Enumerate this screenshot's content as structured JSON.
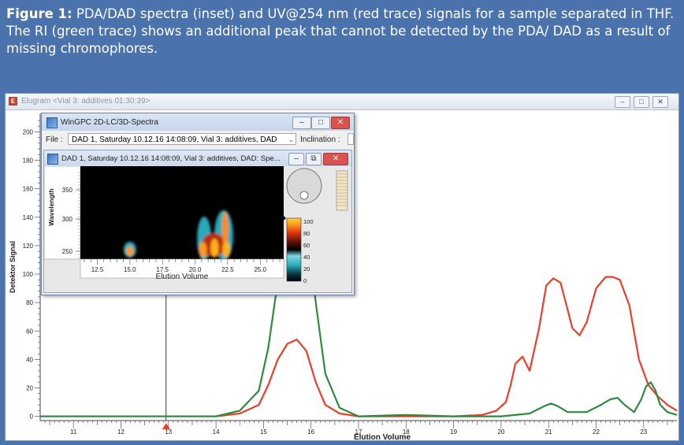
{
  "caption": {
    "figure_label": "Figure 1:",
    "text": "PDA/DAD spectra (inset) and UV@254 nm (red trace) signals for a sample separated in THF. The RI (green trace) shows an additional peak that cannot be detected by the PDA/ DAD as a result of missing chromophores."
  },
  "main_window": {
    "title": "Elugram <Vial 3: additives 01:30:39>",
    "icon": "app-icon",
    "controls": [
      "minimize",
      "maximize",
      "close"
    ]
  },
  "inset_window": {
    "title": "WinGPC 2D-LC/3D-Spectra",
    "file_label": "File :",
    "file_value": "DAD 1, Saturday    10.12.16   14:08:09, Vial   3: additives, DAD",
    "inclination_label": "Inclination :",
    "sub_title": "DAD 1, Saturday    10.12.16   14:08:09, Vial   3: additives, DAD: Spe...",
    "heatmap": {
      "ylabel": "Wavelength",
      "yticks": [
        "350",
        "300",
        "250"
      ],
      "xlabel": "Elution Volume",
      "xticks": [
        "12.5",
        "15.0",
        "17.5",
        "20.0",
        "22.5",
        "25.0"
      ],
      "colorbar_ticks": [
        "100",
        "80",
        "60",
        "40",
        "20",
        "0"
      ]
    }
  },
  "chart_data": {
    "type": "line",
    "xlabel": "Elution Volume",
    "ylabel": "Detektor Signal",
    "xlim": [
      10.3,
      23.7
    ],
    "ylim": [
      -3,
      213
    ],
    "xticks": [
      11,
      12,
      13,
      14,
      15,
      16,
      17,
      18,
      19,
      20,
      21,
      22,
      23
    ],
    "yticks": [
      0,
      20,
      40,
      60,
      80,
      100,
      120,
      140,
      160,
      180,
      200
    ],
    "cursor_x": 12.95,
    "colors": {
      "uv": "#e8402a",
      "ri": "#2e8b3e",
      "cursor": "#000000"
    },
    "series": [
      {
        "x": [
          14.0,
          14.5,
          14.9,
          15.1,
          15.3,
          15.5,
          15.7,
          15.9,
          16.1,
          16.3,
          16.6,
          17.0,
          18.0,
          19.0,
          19.6,
          19.9,
          20.1,
          20.2,
          20.3,
          20.45,
          20.6,
          20.8,
          20.95,
          21.1,
          21.25,
          21.4,
          21.5,
          21.65,
          21.8,
          22.0,
          22.2,
          22.35,
          22.5,
          22.7,
          22.9,
          23.1,
          23.3,
          23.5,
          23.7
        ],
        "y": [
          0,
          2,
          8,
          22,
          40,
          51,
          54,
          46,
          24,
          8,
          2,
          0,
          0,
          0,
          1,
          4,
          10,
          22,
          37,
          42,
          32,
          62,
          92,
          97,
          94,
          75,
          62,
          57,
          66,
          90,
          98,
          98,
          96,
          78,
          40,
          22,
          14,
          8,
          4
        ]
      },
      {
        "x": [
          14.0,
          14.5,
          14.9,
          15.1,
          15.3,
          15.5,
          15.7,
          15.9,
          16.1,
          16.3,
          16.6,
          17.0,
          18.0,
          19.0,
          20.0,
          20.6,
          20.9,
          21.05,
          21.2,
          21.4,
          21.8,
          22.1,
          22.3,
          22.45,
          22.6,
          22.8,
          22.95,
          23.05,
          23.15,
          23.25,
          23.35,
          23.5,
          23.7
        ],
        "y": [
          0,
          4,
          18,
          48,
          95,
          150,
          165,
          140,
          80,
          30,
          6,
          0,
          1,
          0,
          0,
          2,
          7,
          9,
          7,
          3,
          3,
          8,
          12,
          13,
          8,
          3,
          12,
          21,
          24,
          18,
          8,
          3,
          1
        ]
      }
    ]
  }
}
